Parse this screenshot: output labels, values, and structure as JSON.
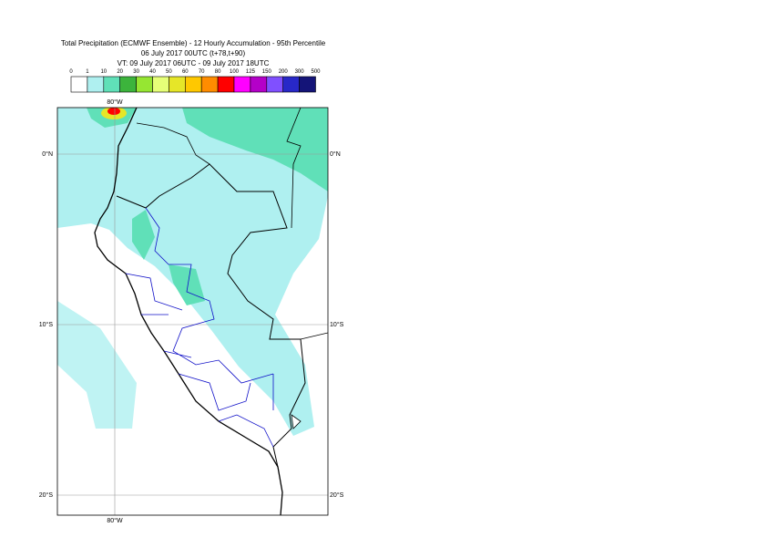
{
  "header": {
    "title": "Total Precipitation (ECMWF Ensemble) - 12 Hourly Accumulation - 95th Percentile",
    "subtitle": "06 July 2017 00UTC (t+78,t+90)",
    "valid": "VT: 09 July 2017 06UTC - 09 July 2017 18UTC"
  },
  "legend": {
    "levels": [
      0,
      1,
      10,
      20,
      30,
      40,
      50,
      60,
      70,
      80,
      100,
      125,
      150,
      200,
      300,
      500
    ],
    "colors": [
      "#ffffff",
      "#aff0f0",
      "#60e0b8",
      "#3cb43c",
      "#96e632",
      "#e6ff78",
      "#e6e628",
      "#ffc800",
      "#ff8c00",
      "#ff0000",
      "#ff00ff",
      "#b400c8",
      "#8050ff",
      "#2828c8",
      "#141478"
    ]
  },
  "axes": {
    "lon": "80°W",
    "lat0": "0°N",
    "lat10": "10°S",
    "lat20": "20°S"
  }
}
